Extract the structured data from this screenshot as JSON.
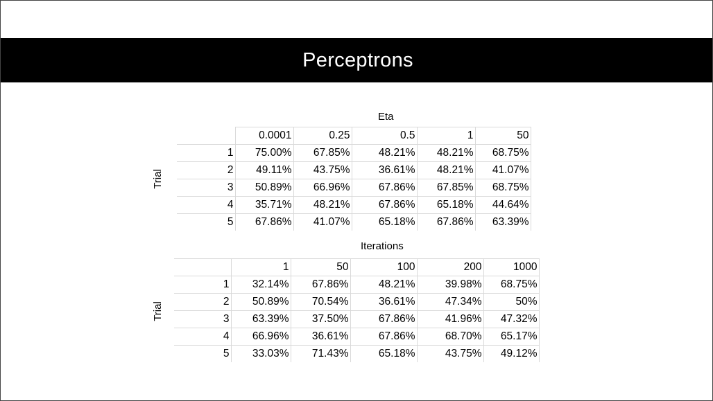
{
  "slide": {
    "title": "Perceptrons"
  },
  "eta_table": {
    "caption": "Eta",
    "side_label": "Trial",
    "columns": [
      "0.0001",
      "0.25",
      "0.5",
      "1",
      "50"
    ],
    "rows": [
      {
        "trial": "1",
        "values": [
          "75.00%",
          "67.85%",
          "48.21%",
          "48.21%",
          "68.75%"
        ]
      },
      {
        "trial": "2",
        "values": [
          "49.11%",
          "43.75%",
          "36.61%",
          "48.21%",
          "41.07%"
        ]
      },
      {
        "trial": "3",
        "values": [
          "50.89%",
          "66.96%",
          "67.86%",
          "67.85%",
          "68.75%"
        ]
      },
      {
        "trial": "4",
        "values": [
          "35.71%",
          "48.21%",
          "67.86%",
          "65.18%",
          "44.64%"
        ]
      },
      {
        "trial": "5",
        "values": [
          "67.86%",
          "41.07%",
          "65.18%",
          "67.86%",
          "63.39%"
        ]
      }
    ]
  },
  "iterations_table": {
    "caption": "Iterations",
    "side_label": "Trial",
    "columns": [
      "1",
      "50",
      "100",
      "200",
      "1000"
    ],
    "rows": [
      {
        "trial": "1",
        "values": [
          "32.14%",
          "67.86%",
          "48.21%",
          "39.98%",
          "68.75%"
        ]
      },
      {
        "trial": "2",
        "values": [
          "50.89%",
          "70.54%",
          "36.61%",
          "47.34%",
          "50%"
        ]
      },
      {
        "trial": "3",
        "values": [
          "63.39%",
          "37.50%",
          "67.86%",
          "41.96%",
          "47.32%"
        ]
      },
      {
        "trial": "4",
        "values": [
          "66.96%",
          "36.61%",
          "67.86%",
          "68.70%",
          "65.17%"
        ]
      },
      {
        "trial": "5",
        "values": [
          "33.03%",
          "71.43%",
          "65.18%",
          "43.75%",
          "49.12%"
        ]
      }
    ]
  }
}
